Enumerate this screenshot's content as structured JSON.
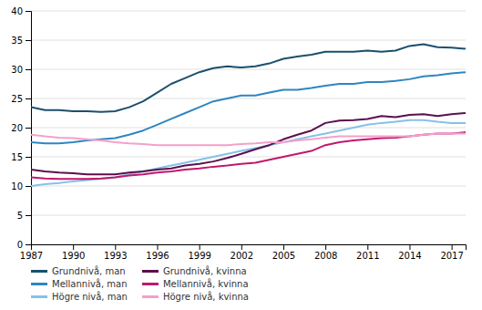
{
  "chart_data": {
    "type": "line",
    "x": [
      1987,
      1988,
      1989,
      1990,
      1991,
      1992,
      1993,
      1994,
      1995,
      1996,
      1997,
      1998,
      1999,
      2000,
      2001,
      2002,
      2003,
      2004,
      2005,
      2006,
      2007,
      2008,
      2009,
      2010,
      2011,
      2012,
      2013,
      2014,
      2015,
      2016,
      2017,
      2018
    ],
    "series": [
      {
        "name": "Grundnivå, man",
        "color": "#1b4f6e",
        "values": [
          23.5,
          23.0,
          23.0,
          22.8,
          22.8,
          22.7,
          22.8,
          23.5,
          24.5,
          26.0,
          27.5,
          28.5,
          29.5,
          30.2,
          30.5,
          30.3,
          30.5,
          31.0,
          31.8,
          32.2,
          32.5,
          33.0,
          33.0,
          33.0,
          33.2,
          33.0,
          33.2,
          34.0,
          34.3,
          33.8,
          33.7,
          33.5
        ]
      },
      {
        "name": "Mellannivå, man",
        "color": "#2e86c1",
        "values": [
          17.5,
          17.3,
          17.3,
          17.5,
          17.8,
          18.0,
          18.2,
          18.8,
          19.5,
          20.5,
          21.5,
          22.5,
          23.5,
          24.5,
          25.0,
          25.5,
          25.5,
          26.0,
          26.5,
          26.5,
          26.8,
          27.2,
          27.5,
          27.5,
          27.8,
          27.8,
          28.0,
          28.3,
          28.8,
          29.0,
          29.3,
          29.5
        ]
      },
      {
        "name": "Högre nivå, man",
        "color": "#85c1e9",
        "values": [
          10.0,
          10.3,
          10.5,
          10.8,
          11.0,
          11.2,
          11.5,
          12.0,
          12.5,
          13.0,
          13.5,
          14.0,
          14.5,
          15.0,
          15.5,
          16.0,
          16.5,
          17.0,
          17.5,
          18.0,
          18.5,
          19.0,
          19.5,
          20.0,
          20.5,
          20.8,
          21.0,
          21.3,
          21.3,
          21.0,
          20.8,
          20.8
        ]
      },
      {
        "name": "Grundnivå, kvinna",
        "color": "#5b0f4e",
        "values": [
          12.8,
          12.5,
          12.3,
          12.2,
          12.0,
          12.0,
          12.0,
          12.3,
          12.5,
          12.8,
          13.0,
          13.5,
          13.8,
          14.2,
          14.8,
          15.5,
          16.3,
          17.0,
          18.0,
          18.8,
          19.5,
          20.8,
          21.2,
          21.3,
          21.5,
          22.0,
          21.8,
          22.2,
          22.3,
          22.0,
          22.3,
          22.5
        ]
      },
      {
        "name": "Mellannivå, kvinna",
        "color": "#c0186e",
        "values": [
          11.5,
          11.3,
          11.2,
          11.2,
          11.2,
          11.3,
          11.5,
          11.8,
          12.0,
          12.3,
          12.5,
          12.8,
          13.0,
          13.3,
          13.5,
          13.8,
          14.0,
          14.5,
          15.0,
          15.5,
          16.0,
          17.0,
          17.5,
          17.8,
          18.0,
          18.2,
          18.3,
          18.5,
          18.8,
          19.0,
          19.0,
          19.2
        ]
      },
      {
        "name": "Högre nivå, kvinna",
        "color": "#f5a0c8",
        "values": [
          18.8,
          18.5,
          18.3,
          18.2,
          18.0,
          17.8,
          17.5,
          17.3,
          17.2,
          17.0,
          17.0,
          17.0,
          17.0,
          17.0,
          17.0,
          17.2,
          17.3,
          17.5,
          17.5,
          17.8,
          18.0,
          18.3,
          18.5,
          18.5,
          18.5,
          18.5,
          18.5,
          18.5,
          18.8,
          19.0,
          19.0,
          19.0
        ]
      }
    ],
    "xlim": [
      1987,
      2018
    ],
    "xticks": [
      1987,
      1990,
      1993,
      1996,
      1999,
      2002,
      2005,
      2008,
      2011,
      2014,
      2017
    ],
    "ylim": [
      0,
      40
    ],
    "yticks": [
      0,
      5,
      10,
      15,
      20,
      25,
      30,
      35,
      40
    ],
    "grid": true,
    "legend": "lower left"
  }
}
